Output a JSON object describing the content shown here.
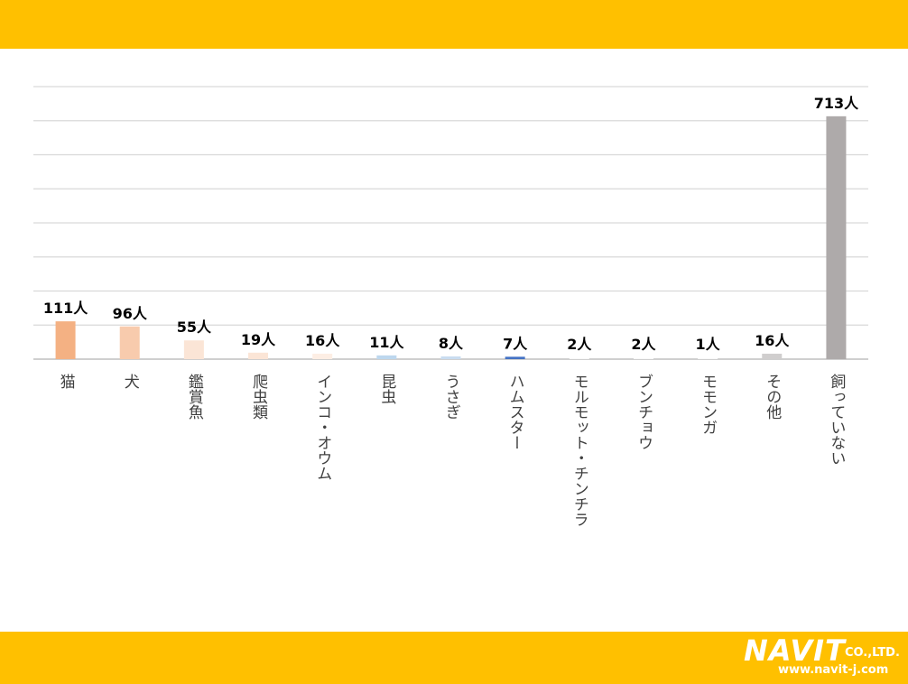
{
  "theme": {
    "band_color": "#FFC000",
    "grid_color": "#d9d9d9",
    "axis_color": "#bfbfbf"
  },
  "logo": {
    "name": "NAVIT",
    "suffix": "CO.,LTD.",
    "url": "www.navit-j.com"
  },
  "chart_data": {
    "type": "bar",
    "title": "",
    "xlabel": "",
    "ylabel": "",
    "unit": "人",
    "ylim": [
      0,
      800
    ],
    "grid": true,
    "categories": [
      "猫",
      "犬",
      "鑑賞魚",
      "爬虫類",
      "インコ・オウム",
      "昆虫",
      "うさぎ",
      "ハムスター",
      "モルモット・チンチラ",
      "ブンチョウ",
      "モモンガ",
      "その他",
      "飼っていない"
    ],
    "values": [
      111,
      96,
      55,
      19,
      16,
      11,
      8,
      7,
      2,
      2,
      1,
      16,
      713
    ],
    "data_labels": [
      "111人",
      "96人",
      "55人",
      "19人",
      "16人",
      "11人",
      "8人",
      "7人",
      "2人",
      "2人",
      "1人",
      "16人",
      "713人"
    ],
    "colors": [
      "#F4B183",
      "#F8CBAD",
      "#FBE5D6",
      "#FBE5D6",
      "#FDEEE4",
      "#BDD7EE",
      "#C9DCF0",
      "#4472C4",
      "#FFFFFF",
      "#FFFFFF",
      "#FFFFFF",
      "#D0CECE",
      "#AEAAAA"
    ]
  }
}
